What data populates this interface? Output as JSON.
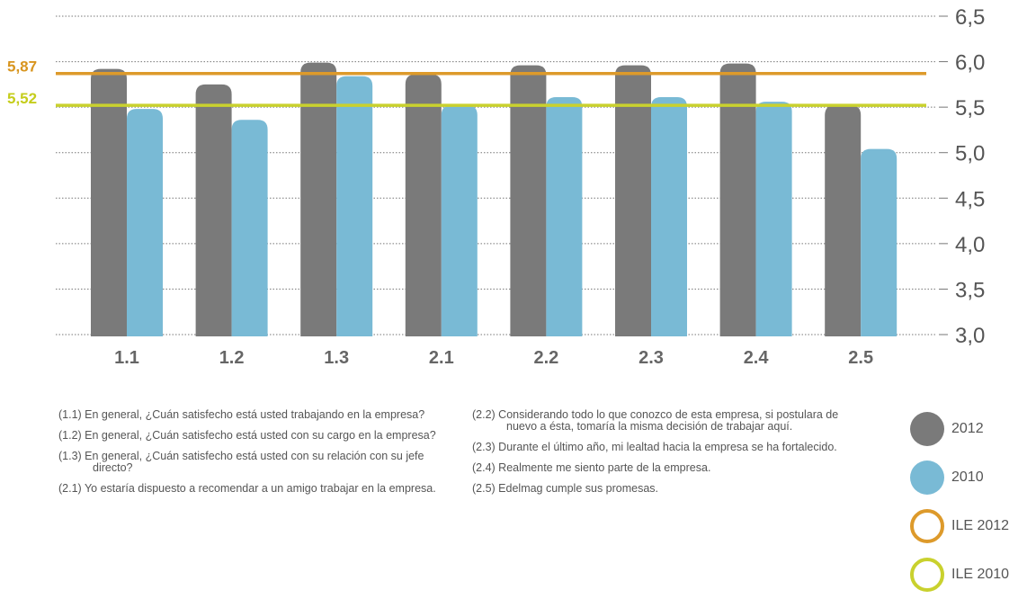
{
  "chart_data": {
    "type": "bar",
    "categories": [
      "1.1",
      "1.2",
      "1.3",
      "2.1",
      "2.2",
      "2.3",
      "2.4",
      "2.5"
    ],
    "series": [
      {
        "name": "2012",
        "color": "#7a7a7a",
        "values": [
          5.92,
          5.75,
          5.99,
          5.86,
          5.96,
          5.96,
          5.98,
          5.52
        ]
      },
      {
        "name": "2010",
        "color": "#79bad5",
        "values": [
          5.48,
          5.36,
          5.84,
          5.52,
          5.61,
          5.61,
          5.56,
          5.04
        ]
      }
    ],
    "ylim": [
      3.0,
      6.5
    ],
    "yticks": [
      "3,0",
      "3,5",
      "4,0",
      "4,5",
      "5,0",
      "5,5",
      "6,0",
      "6,5"
    ],
    "grid": true,
    "y_axis_side": "right",
    "reference_lines": [
      {
        "name": "ILE 2012",
        "value": 5.87,
        "label": "5,87",
        "color": "#dd9a2b",
        "label_color": "#d8951f"
      },
      {
        "name": "ILE 2010",
        "value": 5.52,
        "label": "5,52",
        "color": "#c9d12e",
        "label_color": "#c5cd1c"
      }
    ]
  },
  "notes_left": [
    "(1.1) En general, ¿Cuán satisfecho está usted trabajando en la empresa?",
    "(1.2) En general, ¿Cuán satisfecho está usted con su cargo en la empresa?",
    "(1.3) En general, ¿Cuán satisfecho está usted con su relación con su jefe directo?",
    "(2.1) Yo estaría dispuesto a recomendar a un amigo trabajar en la empresa."
  ],
  "notes_right": [
    "(2.2) Considerando todo lo que conozco de esta empresa, si postulara de nuevo a ésta, tomaría la misma decisión de trabajar aquí.",
    "(2.3) Durante el último año, mi lealtad hacia la empresa se ha fortalecido.",
    "(2.4) Realmente me siento parte de la empresa.",
    "(2.5) Edelmag cumple sus promesas."
  ],
  "legend": [
    {
      "label": "2012",
      "style": "filled",
      "color": "#7a7a7a"
    },
    {
      "label": "2010",
      "style": "filled",
      "color": "#79bad5"
    },
    {
      "label": "ILE 2012",
      "style": "ring",
      "color": "#dd9a2b"
    },
    {
      "label": "ILE 2010",
      "style": "ring",
      "color": "#c9d12e"
    }
  ]
}
